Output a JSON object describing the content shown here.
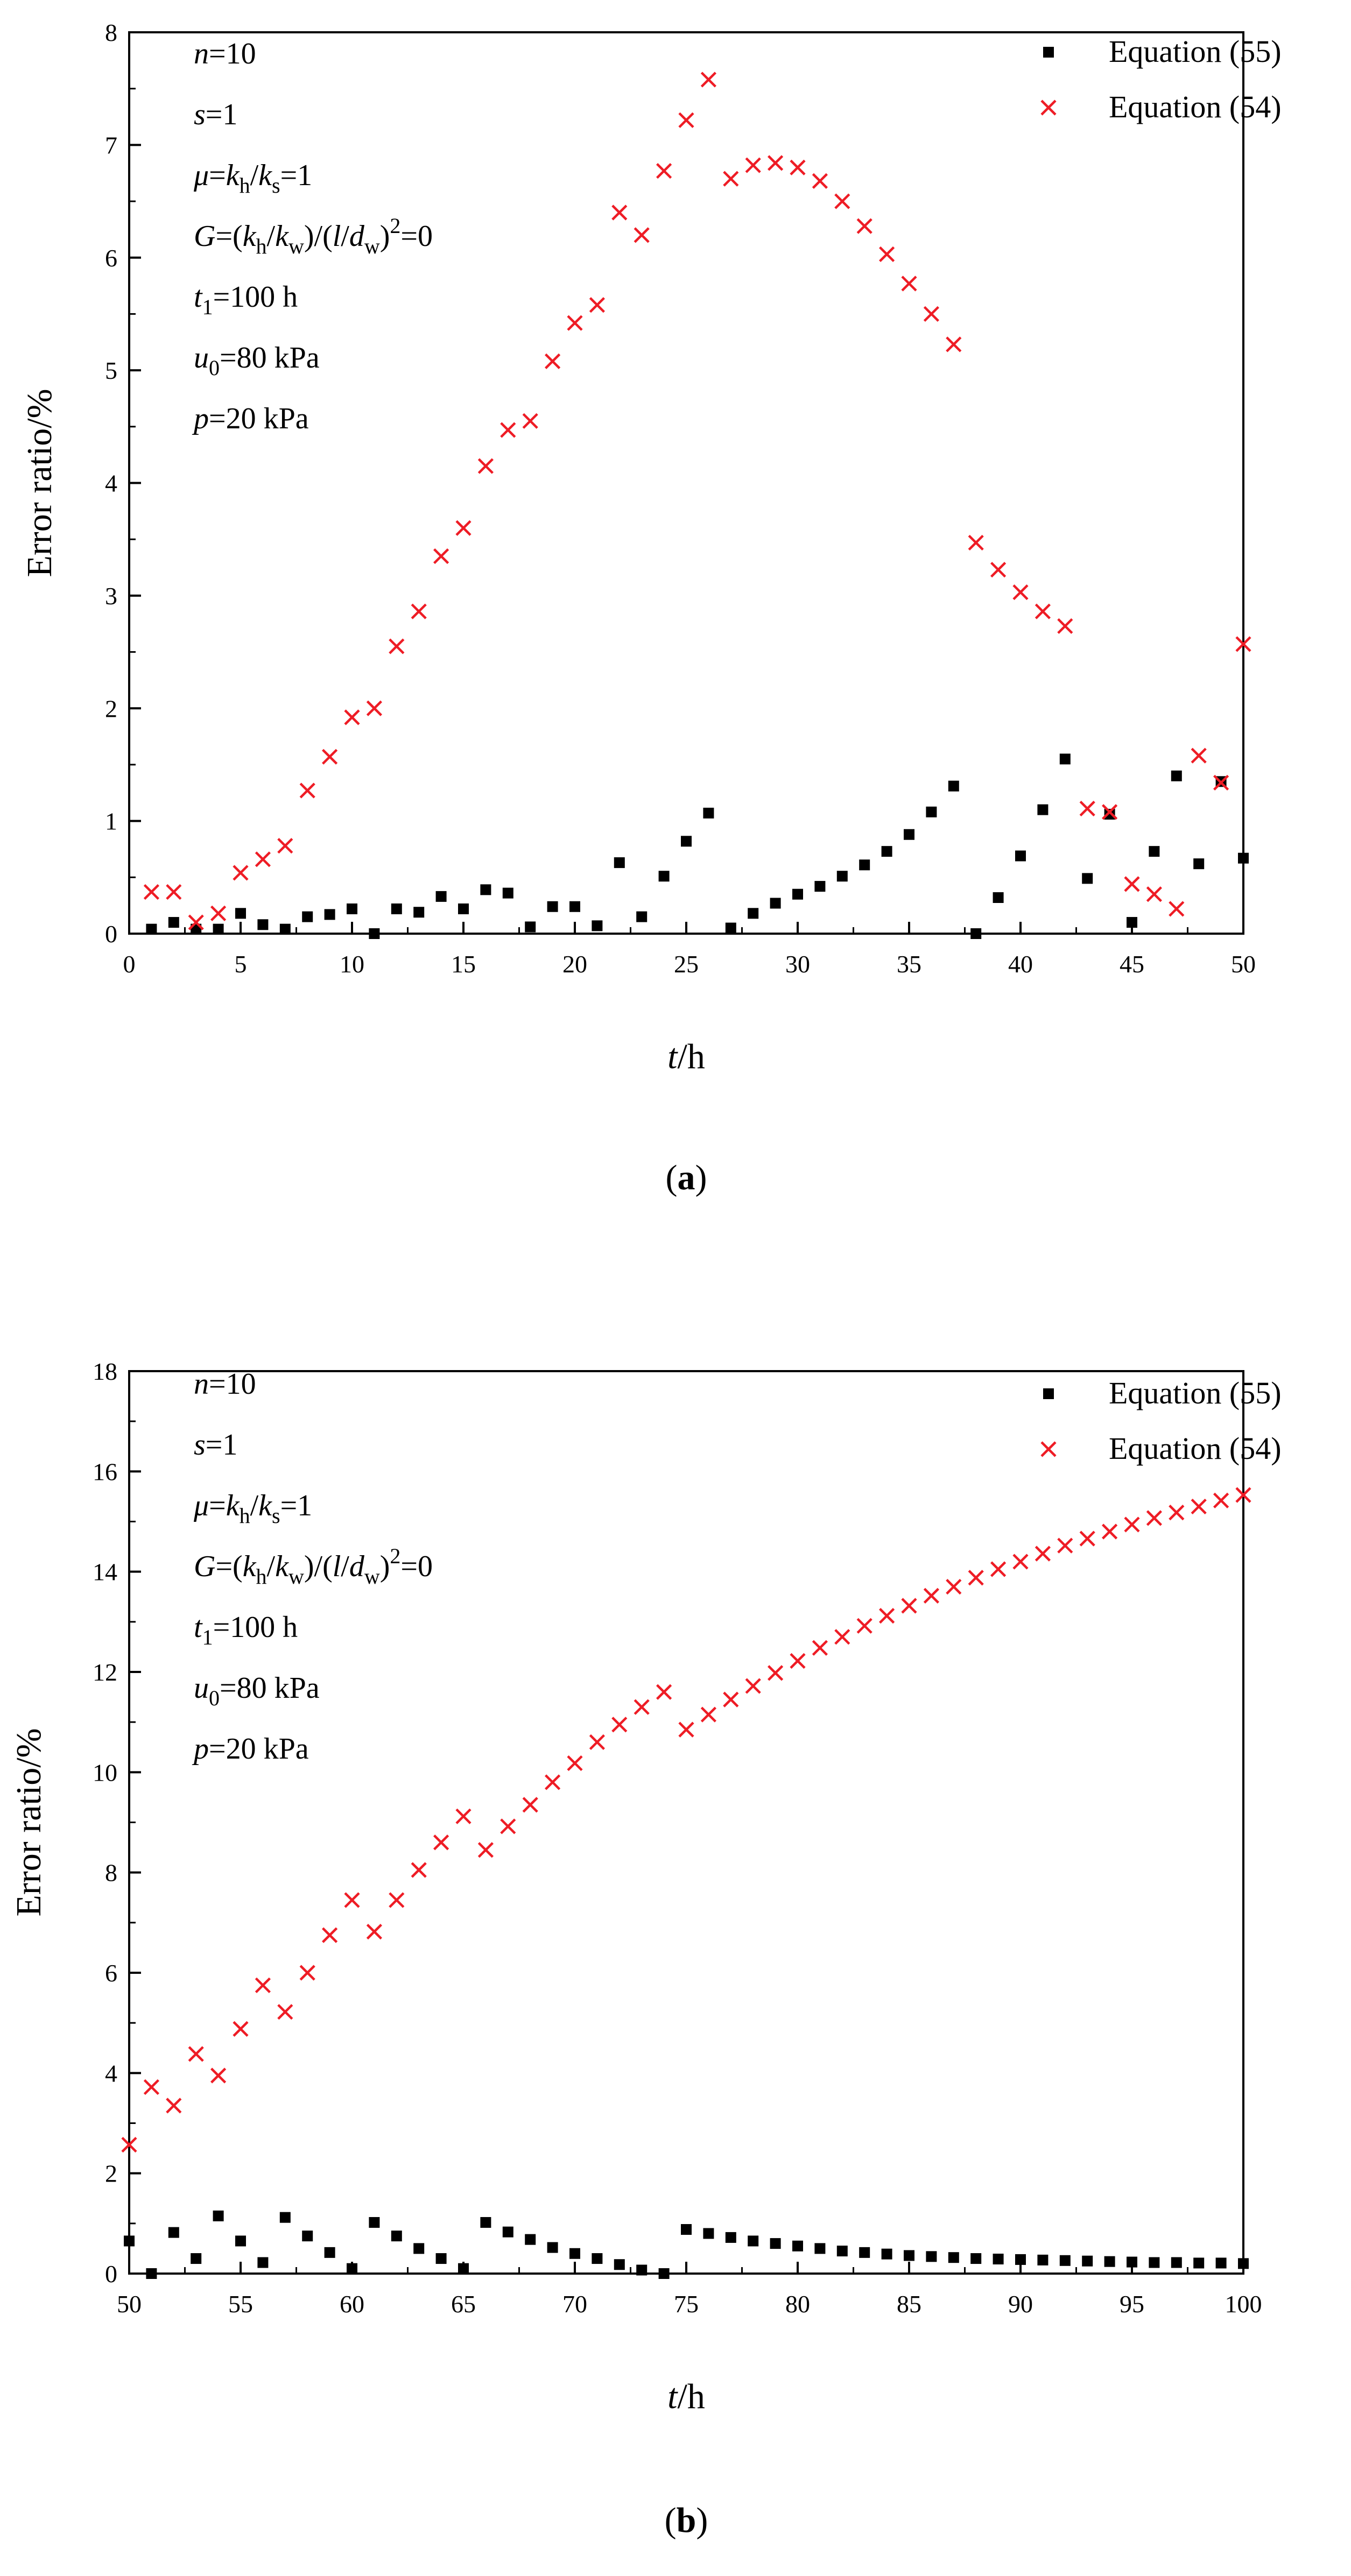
{
  "chart_data": [
    {
      "type": "scatter",
      "panel_label": "a",
      "xlabel": {
        "var": "t",
        "unit": "/h"
      },
      "ylabel": "Error ratio/%",
      "xlim": [
        0,
        50
      ],
      "ylim": [
        0,
        8
      ],
      "xticks": [
        "0",
        "5",
        "10",
        "15",
        "20",
        "25",
        "30",
        "35",
        "40",
        "45",
        "50"
      ],
      "yticks": [
        "0",
        "1",
        "2",
        "3",
        "4",
        "5",
        "6",
        "7",
        "8"
      ],
      "grid": false,
      "legend_position": "top-right",
      "series": [
        {
          "name": "Equation (55)",
          "marker": "square",
          "color": "#000000",
          "x": [
            1,
            2,
            3,
            4,
            5,
            6,
            7,
            8,
            9,
            10,
            11,
            12,
            13,
            14,
            15,
            16,
            17,
            18,
            19,
            20,
            21,
            22,
            23,
            24,
            25,
            26,
            27,
            28,
            29,
            30,
            31,
            32,
            33,
            34,
            35,
            36,
            37,
            38,
            39,
            40,
            41,
            42,
            43,
            44,
            45,
            46,
            47,
            48,
            49,
            50
          ],
          "y": [
            0.04,
            0.1,
            0.04,
            0.04,
            0.18,
            0.08,
            0.04,
            0.15,
            0.17,
            0.22,
            0.0,
            0.22,
            0.19,
            0.33,
            0.22,
            0.39,
            0.36,
            0.06,
            0.24,
            0.24,
            0.07,
            0.63,
            0.15,
            0.51,
            0.82,
            1.07,
            0.05,
            0.18,
            0.27,
            0.35,
            0.42,
            0.51,
            0.61,
            0.73,
            0.88,
            1.08,
            1.31,
            0.0,
            0.32,
            0.69,
            1.1,
            1.55,
            0.49,
            1.06,
            0.1,
            0.73,
            1.4,
            0.62,
            1.35,
            0.67
          ]
        },
        {
          "name": "Equation (54)",
          "marker": "x",
          "color": "#ee1c25",
          "x": [
            1,
            2,
            3,
            4,
            5,
            6,
            7,
            8,
            9,
            10,
            11,
            12,
            13,
            14,
            15,
            16,
            17,
            18,
            19,
            20,
            21,
            22,
            23,
            24,
            25,
            26,
            27,
            28,
            29,
            30,
            31,
            32,
            33,
            34,
            35,
            36,
            37,
            38,
            39,
            40,
            41,
            42,
            43,
            44,
            45,
            46,
            47,
            48,
            49,
            50
          ],
          "y": [
            0.37,
            0.37,
            0.1,
            0.18,
            0.54,
            0.66,
            0.78,
            1.27,
            1.57,
            1.92,
            2.0,
            2.55,
            2.86,
            3.35,
            3.6,
            4.15,
            4.47,
            4.55,
            5.08,
            5.42,
            5.58,
            6.4,
            6.2,
            6.77,
            7.22,
            7.58,
            6.7,
            6.82,
            6.84,
            6.8,
            6.68,
            6.5,
            6.28,
            6.03,
            5.77,
            5.5,
            5.23,
            3.47,
            3.23,
            3.03,
            2.86,
            2.73,
            1.11,
            1.08,
            0.44,
            0.35,
            0.22,
            1.58,
            1.34,
            2.57
          ]
        }
      ],
      "annotations": [
        {
          "segments": [
            {
              "t": "n",
              "i": true
            },
            {
              "t": "=10"
            }
          ]
        },
        {
          "segments": [
            {
              "t": "s",
              "i": true
            },
            {
              "t": "=1"
            }
          ]
        },
        {
          "segments": [
            {
              "t": "μ",
              "i": true
            },
            {
              "t": "="
            },
            {
              "t": "k",
              "i": true
            },
            {
              "t": "h",
              "sub": true
            },
            {
              "t": "/"
            },
            {
              "t": "k",
              "i": true
            },
            {
              "t": "s",
              "sub": true
            },
            {
              "t": "=1"
            }
          ]
        },
        {
          "segments": [
            {
              "t": "G",
              "i": true
            },
            {
              "t": "=("
            },
            {
              "t": "k",
              "i": true
            },
            {
              "t": "h",
              "sub": true
            },
            {
              "t": "/"
            },
            {
              "t": "k",
              "i": true
            },
            {
              "t": "w",
              "sub": true
            },
            {
              "t": ")/("
            },
            {
              "t": "l",
              "i": true
            },
            {
              "t": "/"
            },
            {
              "t": "d",
              "i": true
            },
            {
              "t": "w",
              "sub": true
            },
            {
              "t": ")"
            },
            {
              "t": "2",
              "sup": true
            },
            {
              "t": "=0"
            }
          ]
        },
        {
          "segments": [
            {
              "t": "t",
              "i": true
            },
            {
              "t": "1",
              "sub": true
            },
            {
              "t": "=100 h"
            }
          ]
        },
        {
          "segments": [
            {
              "t": "u",
              "i": true
            },
            {
              "t": "0",
              "sub": true
            },
            {
              "t": "=80 kPa"
            }
          ]
        },
        {
          "segments": [
            {
              "t": "p",
              "i": true
            },
            {
              "t": "=20 kPa"
            }
          ]
        }
      ]
    },
    {
      "type": "scatter",
      "panel_label": "b",
      "xlabel": {
        "var": "t",
        "unit": "/h"
      },
      "ylabel": "Error ratio/%",
      "xlim": [
        50,
        100
      ],
      "ylim": [
        0,
        18
      ],
      "xticks": [
        "50",
        "55",
        "60",
        "65",
        "70",
        "75",
        "80",
        "85",
        "90",
        "95",
        "100"
      ],
      "yticks": [
        "0",
        "2",
        "4",
        "6",
        "8",
        "10",
        "12",
        "14",
        "16",
        "18"
      ],
      "grid": false,
      "legend_position": "top-right",
      "series": [
        {
          "name": "Equation (55)",
          "marker": "square",
          "color": "#000000",
          "x": [
            50,
            51,
            52,
            53,
            54,
            55,
            56,
            57,
            58,
            59,
            60,
            61,
            62,
            63,
            64,
            65,
            66,
            67,
            68,
            69,
            70,
            71,
            72,
            73,
            74,
            75,
            76,
            77,
            78,
            79,
            80,
            81,
            82,
            83,
            84,
            85,
            86,
            87,
            88,
            89,
            90,
            91,
            92,
            93,
            94,
            95,
            96,
            97,
            98,
            99,
            100
          ],
          "y": [
            0.65,
            0.0,
            0.82,
            0.3,
            1.15,
            0.65,
            0.22,
            1.12,
            0.75,
            0.42,
            0.1,
            1.02,
            0.75,
            0.5,
            0.3,
            0.1,
            1.02,
            0.83,
            0.68,
            0.52,
            0.4,
            0.3,
            0.18,
            0.07,
            0.0,
            0.88,
            0.8,
            0.72,
            0.65,
            0.6,
            0.55,
            0.5,
            0.45,
            0.42,
            0.39,
            0.36,
            0.34,
            0.32,
            0.3,
            0.29,
            0.28,
            0.27,
            0.26,
            0.25,
            0.24,
            0.23,
            0.22,
            0.22,
            0.21,
            0.21,
            0.2
          ]
        },
        {
          "name": "Equation (54)",
          "marker": "x",
          "color": "#ee1c25",
          "x": [
            50,
            51,
            52,
            53,
            54,
            55,
            56,
            57,
            58,
            59,
            60,
            61,
            62,
            63,
            64,
            65,
            66,
            67,
            68,
            69,
            70,
            71,
            72,
            73,
            74,
            75,
            76,
            77,
            78,
            79,
            80,
            81,
            82,
            83,
            84,
            85,
            86,
            87,
            88,
            89,
            90,
            91,
            92,
            93,
            94,
            95,
            96,
            97,
            98,
            99,
            100
          ],
          "y": [
            2.57,
            3.72,
            3.35,
            4.38,
            3.95,
            4.88,
            5.75,
            5.22,
            6.0,
            6.75,
            7.45,
            6.82,
            7.45,
            8.05,
            8.6,
            9.12,
            8.45,
            8.92,
            9.35,
            9.8,
            10.18,
            10.6,
            10.95,
            11.3,
            11.6,
            10.85,
            11.15,
            11.45,
            11.72,
            11.98,
            12.22,
            12.48,
            12.7,
            12.92,
            13.12,
            13.32,
            13.52,
            13.7,
            13.88,
            14.05,
            14.2,
            14.36,
            14.52,
            14.66,
            14.8,
            14.94,
            15.07,
            15.18,
            15.3,
            15.42,
            15.53
          ]
        }
      ],
      "annotations": [
        {
          "segments": [
            {
              "t": "n",
              "i": true
            },
            {
              "t": "=10"
            }
          ]
        },
        {
          "segments": [
            {
              "t": "s",
              "i": true
            },
            {
              "t": "=1"
            }
          ]
        },
        {
          "segments": [
            {
              "t": "μ",
              "i": true
            },
            {
              "t": "="
            },
            {
              "t": "k",
              "i": true
            },
            {
              "t": "h",
              "sub": true
            },
            {
              "t": "/"
            },
            {
              "t": "k",
              "i": true
            },
            {
              "t": "s",
              "sub": true
            },
            {
              "t": "=1"
            }
          ]
        },
        {
          "segments": [
            {
              "t": "G",
              "i": true
            },
            {
              "t": "=("
            },
            {
              "t": "k",
              "i": true
            },
            {
              "t": "h",
              "sub": true
            },
            {
              "t": "/"
            },
            {
              "t": "k",
              "i": true
            },
            {
              "t": "w",
              "sub": true
            },
            {
              "t": ")/("
            },
            {
              "t": "l",
              "i": true
            },
            {
              "t": "/"
            },
            {
              "t": "d",
              "i": true
            },
            {
              "t": "w",
              "sub": true
            },
            {
              "t": ")"
            },
            {
              "t": "2",
              "sup": true
            },
            {
              "t": "=0"
            }
          ]
        },
        {
          "segments": [
            {
              "t": "t",
              "i": true
            },
            {
              "t": "1",
              "sub": true
            },
            {
              "t": "=100 h"
            }
          ]
        },
        {
          "segments": [
            {
              "t": "u",
              "i": true
            },
            {
              "t": "0",
              "sub": true
            },
            {
              "t": "=80 kPa"
            }
          ]
        },
        {
          "segments": [
            {
              "t": "p",
              "i": true
            },
            {
              "t": "=20 kPa"
            }
          ]
        }
      ]
    }
  ]
}
